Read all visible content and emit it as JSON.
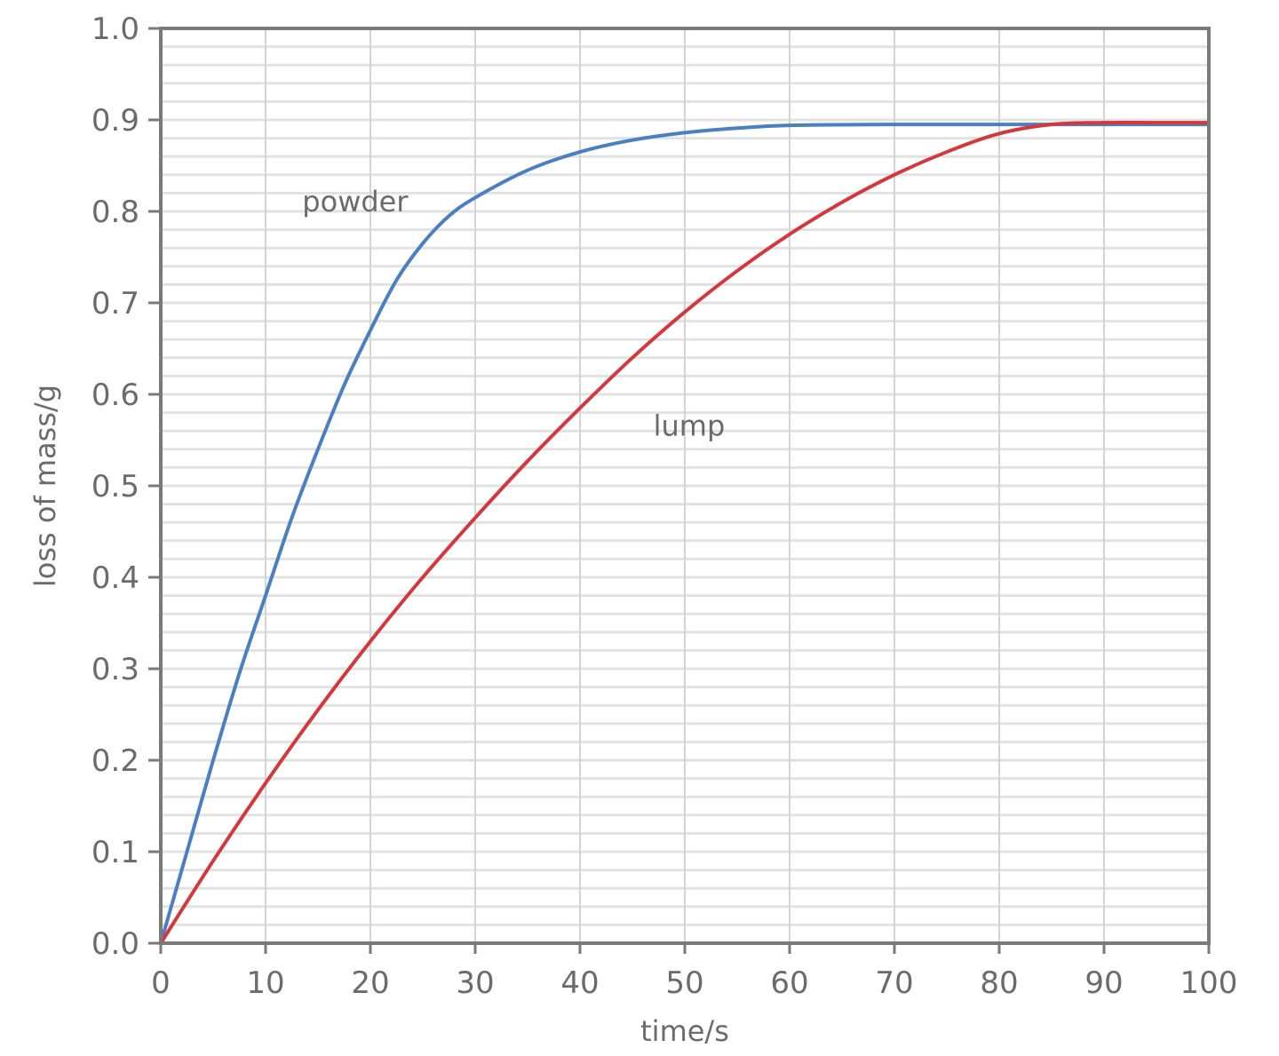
{
  "chart_data": {
    "type": "line",
    "title": "",
    "xlabel": "time/s",
    "ylabel": "loss of mass/g",
    "xlim": [
      0,
      100
    ],
    "ylim": [
      0.0,
      1.0
    ],
    "x_ticks": [
      0,
      10,
      20,
      30,
      40,
      50,
      60,
      70,
      80,
      90,
      100
    ],
    "x_tick_labels": [
      "0",
      "10",
      "20",
      "30",
      "40",
      "50",
      "60",
      "70",
      "80",
      "90",
      "100"
    ],
    "y_ticks": [
      0.0,
      0.1,
      0.2,
      0.3,
      0.4,
      0.5,
      0.6,
      0.7,
      0.8,
      0.9,
      1.0
    ],
    "y_tick_labels": [
      "0.0",
      "0.1",
      "0.2",
      "0.3",
      "0.4",
      "0.5",
      "0.6",
      "0.7",
      "0.8",
      "0.9",
      "1.0"
    ],
    "grid": {
      "major_x_step": 10,
      "minor_y_step": 0.02
    },
    "legend": "none (inline curve labels)",
    "series": [
      {
        "name": "powder",
        "color": "#4a7fc1",
        "label_position": {
          "x": 13.5,
          "y": 0.8
        },
        "x": [
          0,
          2.5,
          5,
          7.5,
          10,
          12.5,
          15,
          17.5,
          20,
          22.5,
          25,
          27.5,
          30,
          35,
          40,
          45,
          50,
          55,
          60,
          70,
          80,
          90,
          100
        ],
        "values": [
          0,
          0.1,
          0.2,
          0.295,
          0.38,
          0.465,
          0.54,
          0.61,
          0.67,
          0.725,
          0.765,
          0.795,
          0.815,
          0.845,
          0.865,
          0.878,
          0.886,
          0.891,
          0.894,
          0.895,
          0.895,
          0.895,
          0.895
        ]
      },
      {
        "name": "lump",
        "color": "#d6373c",
        "label_position": {
          "x": 47,
          "y": 0.555
        },
        "x": [
          0,
          5,
          10,
          15,
          20,
          25,
          30,
          35,
          40,
          45,
          50,
          55,
          60,
          65,
          70,
          75,
          80,
          85,
          90,
          95,
          100
        ],
        "values": [
          0,
          0.09,
          0.175,
          0.255,
          0.33,
          0.4,
          0.465,
          0.527,
          0.585,
          0.64,
          0.69,
          0.735,
          0.775,
          0.81,
          0.84,
          0.865,
          0.885,
          0.895,
          0.897,
          0.897,
          0.897
        ]
      }
    ]
  },
  "colors": {
    "axis": "#7a7a7a",
    "grid": "#e2e2e2",
    "text": "#6b6b6b"
  }
}
